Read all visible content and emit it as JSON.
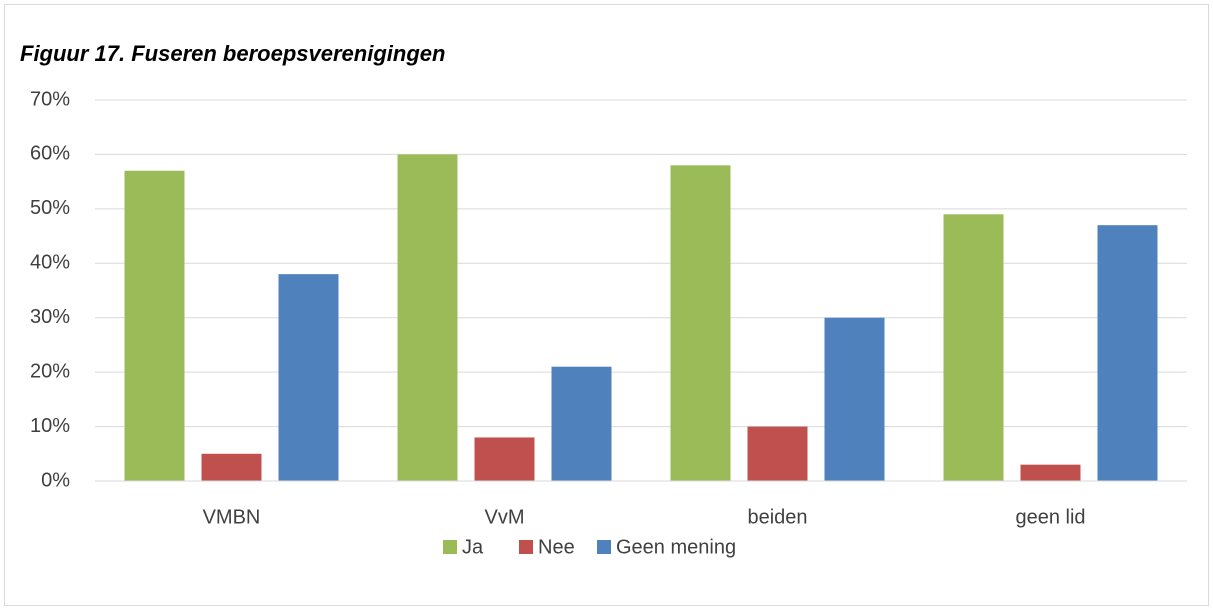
{
  "chart_data": {
    "type": "bar",
    "title": "Figuur 17. Fuseren beroepsverenigingen",
    "categories": [
      "VMBN",
      "VvM",
      "beiden",
      "geen lid"
    ],
    "series": [
      {
        "name": "Ja",
        "color": "#9bbb59",
        "values": [
          57,
          60,
          58,
          49
        ]
      },
      {
        "name": "Nee",
        "color": "#c0504d",
        "values": [
          5,
          8,
          10,
          3
        ]
      },
      {
        "name": "Geen mening",
        "color": "#4f81bd",
        "values": [
          38,
          21,
          30,
          47
        ]
      }
    ],
    "ylim": [
      0,
      70
    ],
    "yticks": [
      {
        "value": 0,
        "label": "0%"
      },
      {
        "value": 10,
        "label": "10%"
      },
      {
        "value": 20,
        "label": "20%"
      },
      {
        "value": 30,
        "label": "30%"
      },
      {
        "value": 40,
        "label": "40%"
      },
      {
        "value": 50,
        "label": "50%"
      },
      {
        "value": 60,
        "label": "60%"
      },
      {
        "value": 70,
        "label": "70%"
      }
    ],
    "grid": true,
    "legend": "bottom"
  }
}
